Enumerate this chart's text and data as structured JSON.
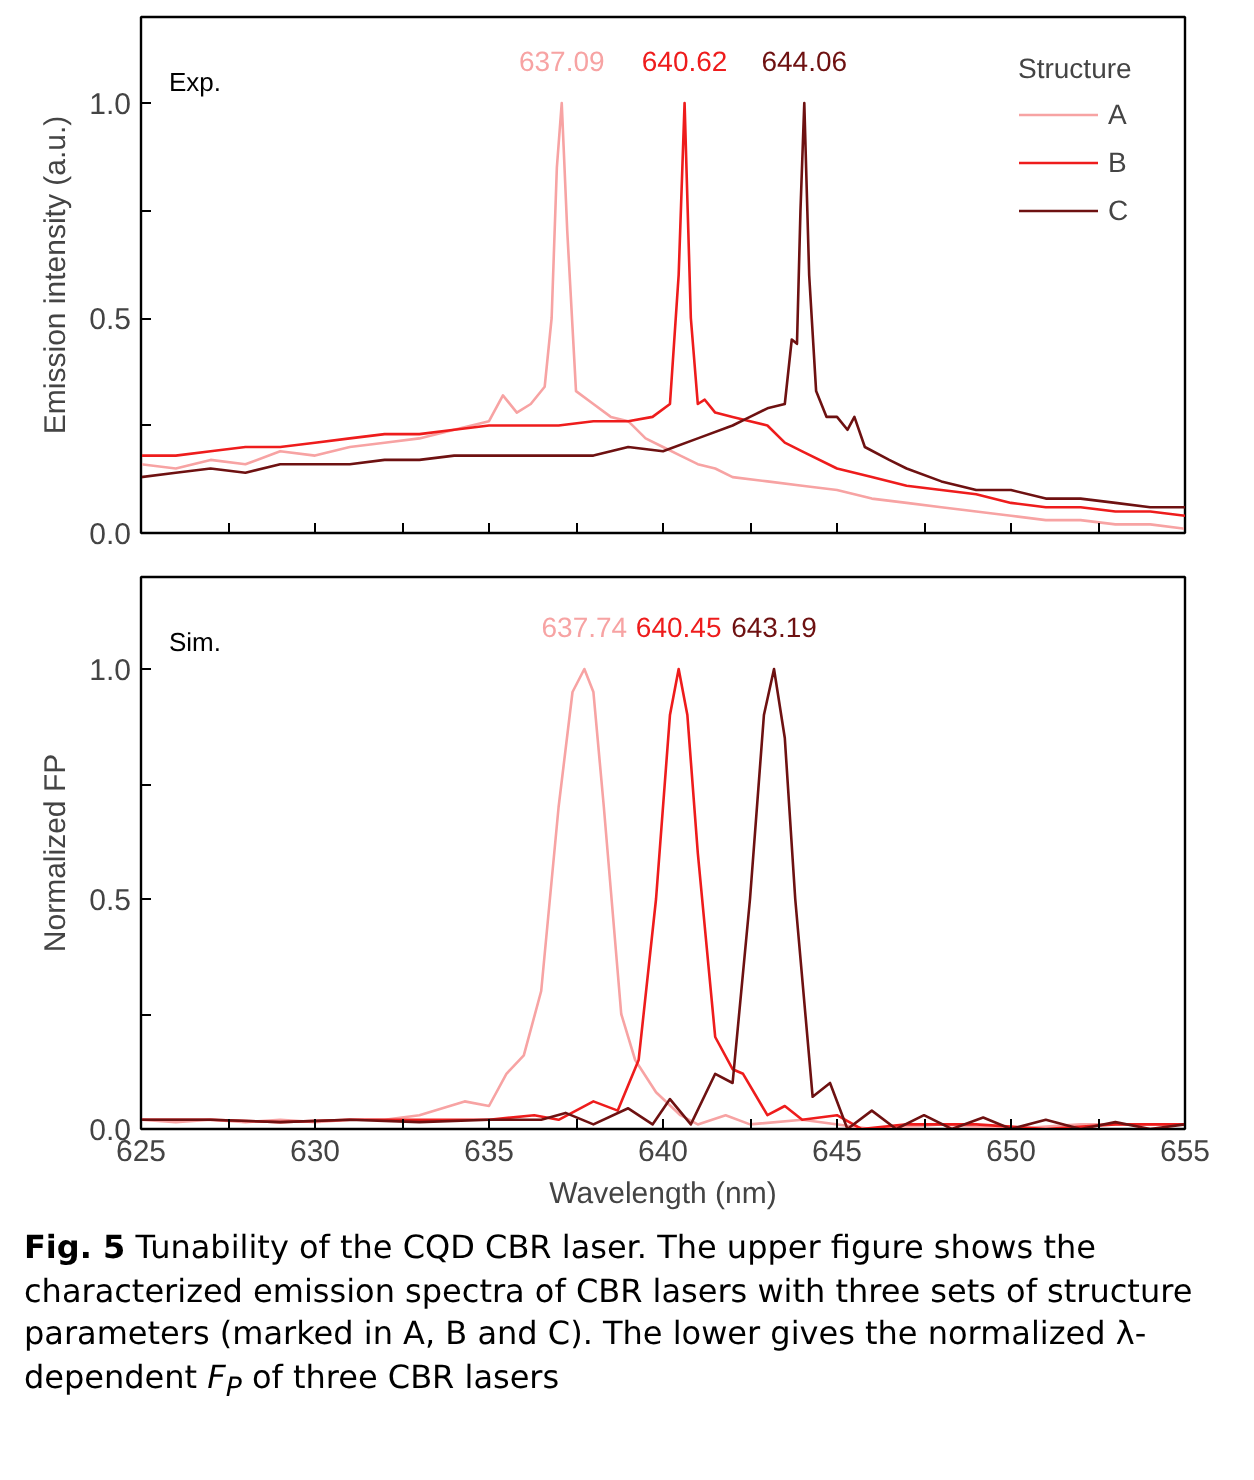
{
  "chart_data": [
    {
      "type": "line",
      "ylabel": "Emission intensity (a.u.)",
      "legend_title": "Structure",
      "legend": "top right",
      "tick_labels": "y",
      "grid": false,
      "xlim": [
        625,
        655
      ],
      "ylim": [
        0,
        1.2
      ],
      "xticks": [
        {
          "value": 625,
          "label": null
        },
        {
          "value": 627.5,
          "label": null
        },
        {
          "value": 630,
          "label": null
        },
        {
          "value": 632.5,
          "label": null
        },
        {
          "value": 635,
          "label": null
        },
        {
          "value": 637.5,
          "label": null
        },
        {
          "value": 640,
          "label": null
        },
        {
          "value": 642.5,
          "label": null
        },
        {
          "value": 645,
          "label": null
        },
        {
          "value": 647.5,
          "label": null
        },
        {
          "value": 650,
          "label": null
        },
        {
          "value": 652.5,
          "label": null
        },
        {
          "value": 655,
          "label": null
        }
      ],
      "yticks": [
        {
          "value": 0,
          "label": "0.0"
        },
        {
          "value": 0.25,
          "label": null
        },
        {
          "value": 0.5,
          "label": "0.5"
        },
        {
          "value": 0.75,
          "label": null
        },
        {
          "value": 1,
          "label": "1.0"
        }
      ],
      "annotations": [
        "Exp.",
        {
          "text": "637.09",
          "x": 637.09,
          "y": 1.0
        },
        {
          "text": "640.62",
          "x": 640.62,
          "y": 1.0
        },
        {
          "text": "644.06",
          "x": 644.06,
          "y": 1.0
        }
      ],
      "series": [
        {
          "name": "A",
          "color": "#f7a3a3",
          "x": [
            625,
            626,
            627,
            628,
            629,
            630,
            631,
            632,
            633,
            634,
            634.5,
            635,
            635.4,
            635.8,
            636.2,
            636.6,
            636.8,
            636.95,
            637.09,
            637.25,
            637.5,
            638,
            638.5,
            639,
            639.5,
            640,
            640.5,
            641,
            641.5,
            642,
            643,
            644,
            645,
            646,
            647,
            648,
            649,
            650,
            651,
            652,
            653,
            654,
            655
          ],
          "values": [
            0.16,
            0.15,
            0.17,
            0.16,
            0.19,
            0.18,
            0.2,
            0.21,
            0.22,
            0.24,
            0.25,
            0.26,
            0.32,
            0.28,
            0.3,
            0.34,
            0.5,
            0.85,
            1.0,
            0.7,
            0.33,
            0.3,
            0.27,
            0.26,
            0.22,
            0.2,
            0.18,
            0.16,
            0.15,
            0.13,
            0.12,
            0.11,
            0.1,
            0.08,
            0.07,
            0.06,
            0.05,
            0.04,
            0.03,
            0.03,
            0.02,
            0.02,
            0.01
          ]
        },
        {
          "name": "B",
          "color": "#ee1c1c",
          "x": [
            625,
            626,
            627,
            628,
            629,
            630,
            631,
            632,
            633,
            634,
            635,
            636,
            637,
            638,
            639,
            639.7,
            640.2,
            640.45,
            640.62,
            640.8,
            641,
            641.2,
            641.5,
            642,
            642.5,
            643,
            643.5,
            644,
            645,
            646,
            647,
            648,
            649,
            650,
            651,
            652,
            653,
            654,
            655
          ],
          "values": [
            0.18,
            0.18,
            0.19,
            0.2,
            0.2,
            0.21,
            0.22,
            0.23,
            0.23,
            0.24,
            0.25,
            0.25,
            0.25,
            0.26,
            0.26,
            0.27,
            0.3,
            0.6,
            1.0,
            0.5,
            0.3,
            0.31,
            0.28,
            0.27,
            0.26,
            0.25,
            0.21,
            0.19,
            0.15,
            0.13,
            0.11,
            0.1,
            0.09,
            0.07,
            0.06,
            0.06,
            0.05,
            0.05,
            0.04
          ]
        },
        {
          "name": "C",
          "color": "#6e1111",
          "x": [
            625,
            626,
            627,
            628,
            629,
            630,
            631,
            632,
            633,
            634,
            635,
            636,
            637,
            638,
            639,
            640,
            641,
            642,
            642.5,
            643,
            643.5,
            643.7,
            643.85,
            643.95,
            644.06,
            644.2,
            644.4,
            644.7,
            645,
            645.3,
            645.5,
            645.8,
            646.5,
            647,
            648,
            649,
            650,
            651,
            652,
            653,
            654,
            655
          ],
          "values": [
            0.13,
            0.14,
            0.15,
            0.14,
            0.16,
            0.16,
            0.16,
            0.17,
            0.17,
            0.18,
            0.18,
            0.18,
            0.18,
            0.18,
            0.2,
            0.19,
            0.22,
            0.25,
            0.27,
            0.29,
            0.3,
            0.45,
            0.44,
            0.75,
            1.0,
            0.6,
            0.33,
            0.27,
            0.27,
            0.24,
            0.27,
            0.2,
            0.17,
            0.15,
            0.12,
            0.1,
            0.1,
            0.08,
            0.08,
            0.07,
            0.06,
            0.06
          ]
        }
      ]
    },
    {
      "type": "line",
      "ylabel": "Normalized FP",
      "xlabel": "Wavelength (nm)",
      "grid": false,
      "xlim": [
        625,
        655
      ],
      "ylim": [
        0,
        1.2
      ],
      "xticks": [
        625,
        {
          "value": 627.5,
          "label": null
        },
        630,
        {
          "value": 632.5,
          "label": null
        },
        635,
        {
          "value": 637.5,
          "label": null
        },
        640,
        {
          "value": 642.5,
          "label": null
        },
        645,
        {
          "value": 647.5,
          "label": null
        },
        650,
        {
          "value": 652.5,
          "label": null
        },
        655
      ],
      "yticks": [
        {
          "value": 0,
          "label": "0.0"
        },
        {
          "value": 0.25,
          "label": null
        },
        {
          "value": 0.5,
          "label": "0.5"
        },
        {
          "value": 0.75,
          "label": null
        },
        {
          "value": 1,
          "label": "1.0"
        }
      ],
      "annotations": [
        "Sim.",
        {
          "text": "637.74",
          "x": 637.74,
          "y": 1.0
        },
        {
          "text": "640.45",
          "x": 640.45,
          "y": 1.0
        },
        {
          "text": "643.19",
          "x": 643.19,
          "y": 1.0
        }
      ],
      "series": [
        {
          "color": "#f7a3a3",
          "x": [
            625,
            626,
            627,
            628,
            629,
            630,
            631,
            632,
            633,
            634.3,
            635,
            635.5,
            636,
            636.5,
            637,
            637.4,
            637.74,
            638,
            638.3,
            638.8,
            639.2,
            639.8,
            640.5,
            641,
            641.8,
            642.5,
            644,
            646,
            648,
            650,
            652,
            655
          ],
          "values": [
            0.02,
            0.015,
            0.02,
            0.015,
            0.02,
            0.015,
            0.02,
            0.02,
            0.03,
            0.06,
            0.05,
            0.12,
            0.16,
            0.3,
            0.7,
            0.95,
            1.0,
            0.95,
            0.7,
            0.25,
            0.15,
            0.08,
            0.03,
            0.01,
            0.03,
            0.01,
            0.02,
            0.0,
            0.01,
            0.0,
            0.01,
            0.01
          ]
        },
        {
          "color": "#ee1c1c",
          "x": [
            625,
            627,
            629,
            631,
            633,
            635,
            636.3,
            637,
            638,
            638.7,
            639.3,
            639.8,
            640.2,
            640.45,
            640.7,
            641,
            641.5,
            642,
            642.3,
            643,
            643.5,
            644,
            645,
            645.7,
            647,
            649,
            651,
            653,
            655
          ],
          "values": [
            0.02,
            0.02,
            0.015,
            0.02,
            0.02,
            0.02,
            0.03,
            0.02,
            0.06,
            0.04,
            0.15,
            0.5,
            0.9,
            1.0,
            0.9,
            0.6,
            0.2,
            0.13,
            0.12,
            0.03,
            0.05,
            0.02,
            0.03,
            0.0,
            0.01,
            0.01,
            0.0,
            0.01,
            0.01
          ]
        },
        {
          "color": "#6e1111",
          "x": [
            625,
            627,
            629,
            631,
            633,
            635,
            636.5,
            637.2,
            638,
            639,
            639.7,
            640.2,
            640.8,
            641.5,
            642,
            642.5,
            642.9,
            643.19,
            643.5,
            643.8,
            644.3,
            644.8,
            645.3,
            646,
            646.7,
            647.5,
            648.3,
            649.2,
            650,
            651,
            652,
            653,
            654,
            655
          ],
          "values": [
            0.02,
            0.02,
            0.015,
            0.02,
            0.015,
            0.02,
            0.02,
            0.035,
            0.01,
            0.045,
            0.01,
            0.065,
            0.01,
            0.12,
            0.1,
            0.5,
            0.9,
            1.0,
            0.85,
            0.5,
            0.07,
            0.1,
            0.0,
            0.04,
            0.0,
            0.03,
            0.0,
            0.025,
            0.0,
            0.02,
            0.0,
            0.015,
            0.0,
            0.01
          ]
        }
      ]
    },
    {
      "type": "other",
      "annotations": [
        "Fig. 5 Tunability of the CQD CBR laser. The upper figure shows the characterized emission spectra of CBR lasers with three sets of structure parameters (marked in A, B and C). The lower gives the normalized λ-dependent F$_{P}$ of three CBR lasers"
      ]
    }
  ]
}
